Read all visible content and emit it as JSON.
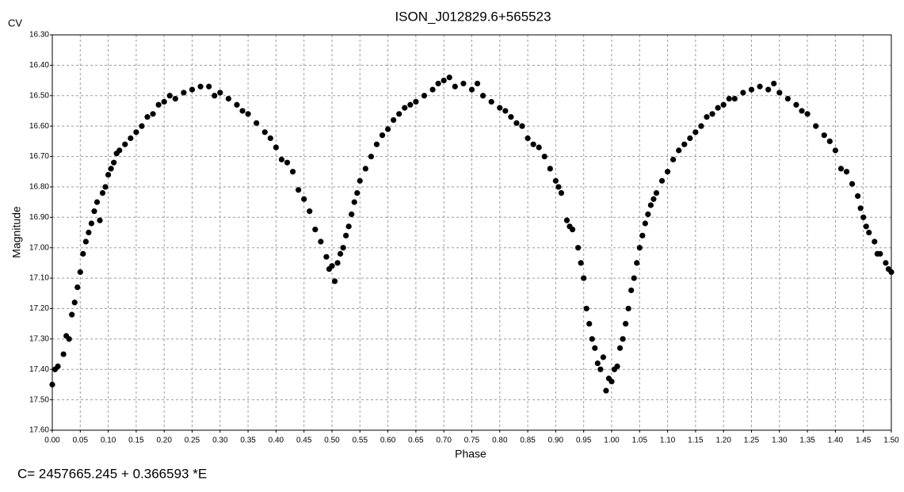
{
  "chart_data": {
    "type": "scatter",
    "title": "ISON_J012829.6+565523",
    "corner_label": "CV",
    "x_label": "Phase",
    "y_label": "Magnitude",
    "footer": "C= 2457665.245 + 0.366593 *E",
    "grid": true,
    "xlim": [
      0,
      1.5
    ],
    "ylim": [
      17.6,
      16.3
    ],
    "xticks": [
      {
        "value": 0,
        "label": "0.00"
      },
      {
        "value": 0.05,
        "label": "0.05"
      },
      {
        "value": 0.1,
        "label": "0.10"
      },
      {
        "value": 0.15,
        "label": "0.15"
      },
      {
        "value": 0.2,
        "label": "0.20"
      },
      {
        "value": 0.25,
        "label": "0.25"
      },
      {
        "value": 0.3,
        "label": "0.30"
      },
      {
        "value": 0.35,
        "label": "0.35"
      },
      {
        "value": 0.4,
        "label": "0.40"
      },
      {
        "value": 0.45,
        "label": "0.45"
      },
      {
        "value": 0.5,
        "label": "0.50"
      },
      {
        "value": 0.55,
        "label": "0.55"
      },
      {
        "value": 0.6,
        "label": "0.60"
      },
      {
        "value": 0.65,
        "label": "0.65"
      },
      {
        "value": 0.7,
        "label": "0.70"
      },
      {
        "value": 0.75,
        "label": "0.75"
      },
      {
        "value": 0.8,
        "label": "0.80"
      },
      {
        "value": 0.85,
        "label": "0.85"
      },
      {
        "value": 0.9,
        "label": "0.90"
      },
      {
        "value": 0.95,
        "label": "0.95"
      },
      {
        "value": 1,
        "label": "1.00"
      },
      {
        "value": 1.05,
        "label": "1.05"
      },
      {
        "value": 1.1,
        "label": "1.10"
      },
      {
        "value": 1.15,
        "label": "1.15"
      },
      {
        "value": 1.2,
        "label": "1.20"
      },
      {
        "value": 1.25,
        "label": "1.25"
      },
      {
        "value": 1.3,
        "label": "1.30"
      },
      {
        "value": 1.35,
        "label": "1.35"
      },
      {
        "value": 1.4,
        "label": "1.40"
      },
      {
        "value": 1.45,
        "label": "1.45"
      },
      {
        "value": 1.5,
        "label": "1.50"
      }
    ],
    "yticks": [
      {
        "value": 16.3,
        "label": "16.30"
      },
      {
        "value": 16.4,
        "label": "16.40"
      },
      {
        "value": 16.5,
        "label": "16.50"
      },
      {
        "value": 16.6,
        "label": "16.60"
      },
      {
        "value": 16.7,
        "label": "16.70"
      },
      {
        "value": 16.8,
        "label": "16.80"
      },
      {
        "value": 16.9,
        "label": "16.90"
      },
      {
        "value": 17,
        "label": "17.00"
      },
      {
        "value": 17.1,
        "label": "17.10"
      },
      {
        "value": 17.2,
        "label": "17.20"
      },
      {
        "value": 17.3,
        "label": "17.30"
      },
      {
        "value": 17.4,
        "label": "17.40"
      },
      {
        "value": 17.5,
        "label": "17.50"
      },
      {
        "value": 17.6,
        "label": "17.60"
      }
    ],
    "series": [
      {
        "color": "#000000",
        "x": [
          0.0,
          0.005,
          0.01,
          0.02,
          0.025,
          0.03,
          0.035,
          0.04,
          0.045,
          0.05,
          0.055,
          0.06,
          0.065,
          0.07,
          0.075,
          0.08,
          0.085,
          0.09,
          0.095,
          0.1,
          0.105,
          0.11,
          0.115,
          0.12,
          0.13,
          0.14,
          0.15,
          0.16,
          0.17,
          0.18,
          0.19,
          0.2,
          0.21,
          0.22,
          0.235,
          0.25,
          0.265,
          0.28,
          0.29,
          0.3,
          0.315,
          0.33,
          0.34,
          0.35,
          0.365,
          0.38,
          0.39,
          0.4,
          0.41,
          0.42,
          0.43,
          0.44,
          0.45,
          0.46,
          0.47,
          0.48,
          0.49,
          0.495,
          0.5,
          0.505,
          0.51,
          0.515,
          0.52,
          0.525,
          0.53,
          0.535,
          0.54,
          0.545,
          0.55,
          0.56,
          0.57,
          0.58,
          0.59,
          0.6,
          0.61,
          0.62,
          0.63,
          0.64,
          0.65,
          0.665,
          0.68,
          0.69,
          0.7,
          0.71,
          0.72,
          0.735,
          0.75,
          0.76,
          0.77,
          0.785,
          0.8,
          0.81,
          0.82,
          0.83,
          0.84,
          0.85,
          0.86,
          0.87,
          0.88,
          0.89,
          0.9,
          0.905,
          0.91,
          0.92,
          0.925,
          0.93,
          0.94,
          0.945,
          0.95,
          0.955,
          0.96,
          0.965,
          0.97,
          0.975,
          0.98,
          0.985,
          0.99,
          0.995,
          1.0,
          1.005,
          1.01,
          1.015,
          1.02,
          1.025,
          1.03,
          1.035,
          1.04,
          1.045,
          1.05,
          1.055,
          1.06,
          1.065,
          1.07,
          1.075,
          1.08,
          1.09,
          1.1,
          1.11,
          1.12,
          1.13,
          1.14,
          1.15,
          1.16,
          1.17,
          1.18,
          1.19,
          1.2,
          1.21,
          1.22,
          1.235,
          1.25,
          1.265,
          1.28,
          1.29,
          1.3,
          1.315,
          1.33,
          1.34,
          1.35,
          1.365,
          1.38,
          1.39,
          1.4,
          1.41,
          1.42,
          1.43,
          1.44,
          1.445,
          1.45,
          1.455,
          1.46,
          1.47,
          1.475,
          1.48,
          1.49,
          1.495,
          1.5
        ],
        "values": [
          17.45,
          17.4,
          17.39,
          17.35,
          17.29,
          17.3,
          17.22,
          17.18,
          17.13,
          17.08,
          17.02,
          16.98,
          16.95,
          16.92,
          16.88,
          16.85,
          16.91,
          16.82,
          16.8,
          16.76,
          16.74,
          16.72,
          16.69,
          16.68,
          16.66,
          16.64,
          16.62,
          16.6,
          16.57,
          16.56,
          16.53,
          16.52,
          16.5,
          16.51,
          16.49,
          16.48,
          16.47,
          16.47,
          16.5,
          16.49,
          16.51,
          16.53,
          16.55,
          16.56,
          16.59,
          16.62,
          16.64,
          16.67,
          16.71,
          16.72,
          16.75,
          16.81,
          16.84,
          16.88,
          16.94,
          16.98,
          17.03,
          17.07,
          17.06,
          17.11,
          17.05,
          17.02,
          17.0,
          16.96,
          16.93,
          16.89,
          16.85,
          16.82,
          16.78,
          16.74,
          16.7,
          16.66,
          16.63,
          16.61,
          16.58,
          16.56,
          16.54,
          16.53,
          16.52,
          16.5,
          16.48,
          16.46,
          16.45,
          16.44,
          16.47,
          16.46,
          16.48,
          16.46,
          16.5,
          16.52,
          16.54,
          16.55,
          16.57,
          16.59,
          16.6,
          16.64,
          16.66,
          16.67,
          16.7,
          16.74,
          16.78,
          16.8,
          16.82,
          16.91,
          16.93,
          16.94,
          17.0,
          17.05,
          17.1,
          17.2,
          17.25,
          17.3,
          17.33,
          17.38,
          17.4,
          17.36,
          17.47,
          17.43,
          17.44,
          17.4,
          17.39,
          17.33,
          17.3,
          17.25,
          17.2,
          17.14,
          17.1,
          17.05,
          17.0,
          16.96,
          16.92,
          16.89,
          16.86,
          16.84,
          16.82,
          16.78,
          16.75,
          16.71,
          16.68,
          16.66,
          16.64,
          16.62,
          16.6,
          16.57,
          16.56,
          16.54,
          16.53,
          16.51,
          16.51,
          16.49,
          16.48,
          16.47,
          16.48,
          16.46,
          16.49,
          16.51,
          16.53,
          16.55,
          16.56,
          16.6,
          16.63,
          16.65,
          16.68,
          16.74,
          16.75,
          16.79,
          16.83,
          16.87,
          16.9,
          16.93,
          16.95,
          16.98,
          17.02,
          17.02,
          17.05,
          17.07,
          17.08
        ]
      }
    ]
  }
}
